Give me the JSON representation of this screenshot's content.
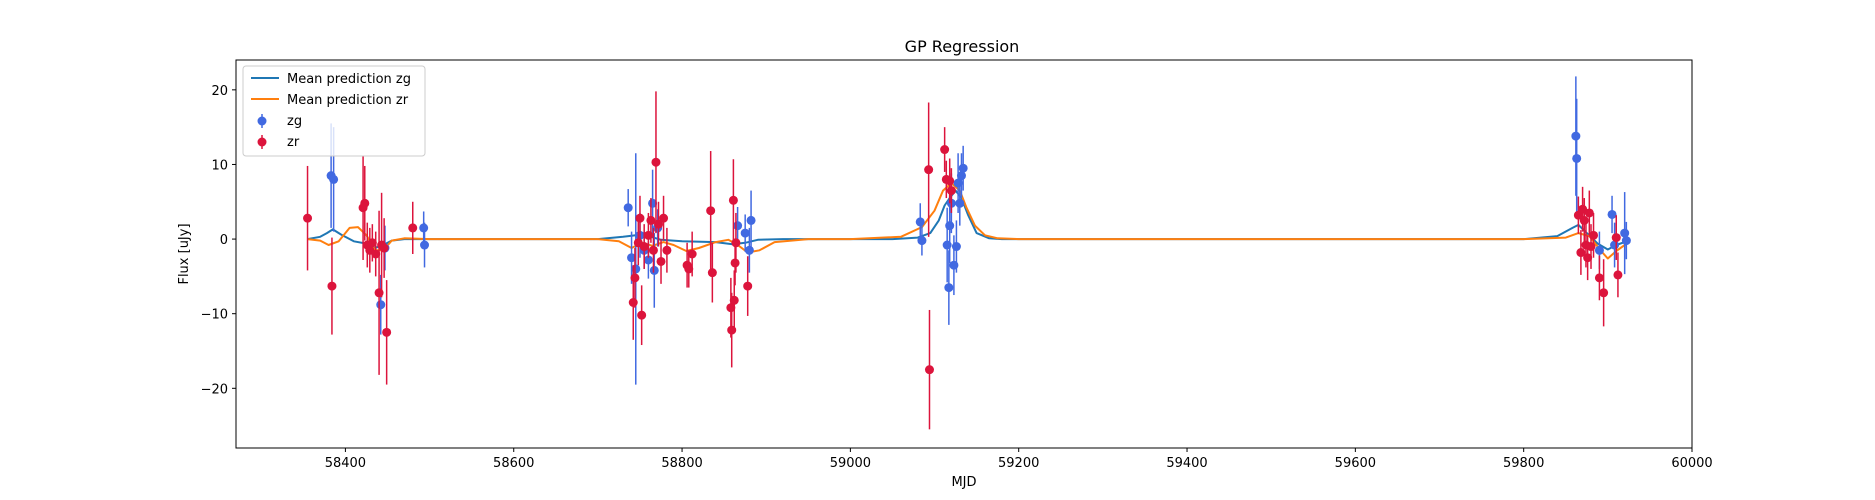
{
  "chart_data": {
    "type": "scatter",
    "title": "GP Regression",
    "xlabel": "MJD",
    "ylabel": "Flux [uJy]",
    "xlim": [
      58270,
      60000
    ],
    "ylim": [
      -28,
      24
    ],
    "xticks": [
      58400,
      58600,
      58800,
      59000,
      59200,
      59400,
      59600,
      59800,
      60000
    ],
    "yticks": [
      -20,
      -10,
      0,
      10,
      20
    ],
    "ytick_labels": [
      "−20",
      "−10",
      "0",
      "10",
      "20"
    ],
    "legend_position": "upper-left",
    "colors": {
      "zg_line": "#1f77b4",
      "zr_line": "#ff7f0e",
      "zg_points": "#4169e1",
      "zr_points": "#dc143c"
    },
    "series": [
      {
        "name": "Mean prediction zg",
        "kind": "line",
        "color_key": "zg_line",
        "x": [
          58355,
          58370,
          58378,
          58385,
          58395,
          58410,
          58425,
          58435,
          58445,
          58455,
          58470,
          58500,
          58600,
          58700,
          58730,
          58745,
          58760,
          58775,
          58800,
          58840,
          58860,
          58875,
          58890,
          58920,
          59000,
          59050,
          59080,
          59095,
          59105,
          59112,
          59118,
          59125,
          59132,
          59140,
          59150,
          59165,
          59180,
          59250,
          59400,
          59600,
          59800,
          59840,
          59858,
          59865,
          59875,
          59888,
          59900,
          59910,
          59925
        ],
        "y": [
          0,
          0.3,
          0.8,
          1.3,
          0.6,
          -0.3,
          -0.6,
          -1.2,
          -0.8,
          -0.2,
          0,
          0,
          0,
          0,
          0.3,
          0.5,
          0.4,
          -0.1,
          -0.3,
          -0.4,
          -0.7,
          -0.5,
          -0.1,
          0,
          0,
          0,
          0.2,
          0.8,
          2.5,
          4.5,
          5.5,
          6.5,
          5.5,
          3.2,
          0.8,
          0.1,
          0,
          0,
          0,
          0,
          0,
          0.4,
          1.5,
          1.9,
          0.8,
          -0.6,
          -1.4,
          -0.8,
          -0.2
        ]
      },
      {
        "name": "Mean prediction zr",
        "kind": "line",
        "color_key": "zr_line",
        "x": [
          58355,
          58370,
          58380,
          58392,
          58405,
          58415,
          58425,
          58435,
          58445,
          58455,
          58470,
          58500,
          58600,
          58700,
          58725,
          58740,
          58752,
          58765,
          58778,
          58790,
          58805,
          58820,
          58840,
          58855,
          58865,
          58878,
          58892,
          58910,
          58950,
          59000,
          59060,
          59085,
          59100,
          59110,
          59120,
          59130,
          59138,
          59148,
          59160,
          59175,
          59200,
          59400,
          59600,
          59800,
          59850,
          59865,
          59878,
          59892,
          59900,
          59910,
          59925
        ],
        "y": [
          0,
          -0.2,
          -0.8,
          -0.3,
          1.5,
          1.6,
          0.5,
          -1.5,
          -1.5,
          -0.2,
          0.1,
          0,
          0,
          0,
          -0.3,
          -1.2,
          -0.5,
          -0.9,
          -0.4,
          -0.8,
          -1.6,
          -1.2,
          -0.4,
          -0.1,
          -0.7,
          -1.8,
          -1.5,
          -0.4,
          0,
          0,
          0.3,
          1.6,
          3.8,
          6.5,
          7.5,
          6.5,
          4.2,
          1.8,
          0.5,
          0.1,
          0,
          0,
          0,
          0,
          0.2,
          0.8,
          0.4,
          -1.6,
          -2.6,
          -1.6,
          -0.4
        ]
      },
      {
        "name": "zg",
        "kind": "errorbar",
        "color_key": "zg_points",
        "points": [
          {
            "x": 58383,
            "y": 8.5,
            "err": 7
          },
          {
            "x": 58386,
            "y": 8.0,
            "err": 7
          },
          {
            "x": 58442,
            "y": -8.8,
            "err": 4
          },
          {
            "x": 58447,
            "y": -1.2,
            "err": 3
          },
          {
            "x": 58493,
            "y": 1.5,
            "err": 2.2
          },
          {
            "x": 58494,
            "y": -0.8,
            "err": 3
          },
          {
            "x": 58736,
            "y": 4.2,
            "err": 2.5
          },
          {
            "x": 58740,
            "y": -2.5,
            "err": 3.5
          },
          {
            "x": 58745,
            "y": -4.0,
            "err": 15.5
          },
          {
            "x": 58750,
            "y": 0.5,
            "err": 3
          },
          {
            "x": 58755,
            "y": -1.5,
            "err": 2.5
          },
          {
            "x": 58760,
            "y": -2.8,
            "err": 2.5
          },
          {
            "x": 58765,
            "y": 4.8,
            "err": 4.5
          },
          {
            "x": 58767,
            "y": -4.2,
            "err": 5
          },
          {
            "x": 58771,
            "y": 1.5,
            "err": 2.5
          },
          {
            "x": 58866,
            "y": 1.8,
            "err": 2.5
          },
          {
            "x": 58875,
            "y": 0.8,
            "err": 2.5
          },
          {
            "x": 58880,
            "y": -1.5,
            "err": 3
          },
          {
            "x": 58882,
            "y": 2.5,
            "err": 4
          },
          {
            "x": 59083,
            "y": 2.3,
            "err": 2.5
          },
          {
            "x": 59085,
            "y": -0.2,
            "err": 2
          },
          {
            "x": 59115,
            "y": -0.8,
            "err": 5
          },
          {
            "x": 59117,
            "y": -6.5,
            "err": 5
          },
          {
            "x": 59118,
            "y": 1.8,
            "err": 5
          },
          {
            "x": 59120,
            "y": 4.8,
            "err": 4
          },
          {
            "x": 59123,
            "y": -3.5,
            "err": 4
          },
          {
            "x": 59126,
            "y": -1.0,
            "err": 3.5
          },
          {
            "x": 59128,
            "y": 7.5,
            "err": 4
          },
          {
            "x": 59130,
            "y": 4.8,
            "err": 3
          },
          {
            "x": 59132,
            "y": 8.5,
            "err": 3
          },
          {
            "x": 59134,
            "y": 9.5,
            "err": 3
          },
          {
            "x": 59862,
            "y": 13.8,
            "err": 8
          },
          {
            "x": 59863,
            "y": 10.8,
            "err": 8
          },
          {
            "x": 59890,
            "y": -1.5,
            "err": 2.5
          },
          {
            "x": 59905,
            "y": 3.3,
            "err": 2.5
          },
          {
            "x": 59908,
            "y": -0.8,
            "err": 3
          },
          {
            "x": 59920,
            "y": 0.8,
            "err": 5.5
          },
          {
            "x": 59922,
            "y": -0.2,
            "err": 2.5
          }
        ]
      },
      {
        "name": "zr",
        "kind": "errorbar",
        "color_key": "zr_points",
        "points": [
          {
            "x": 58355,
            "y": 2.8,
            "err": 7
          },
          {
            "x": 58384,
            "y": -6.3,
            "err": 6.5
          },
          {
            "x": 58421,
            "y": 4.2,
            "err": 7
          },
          {
            "x": 58423,
            "y": 4.8,
            "err": 5
          },
          {
            "x": 58426,
            "y": -0.8,
            "err": 3
          },
          {
            "x": 58429,
            "y": -1.5,
            "err": 3
          },
          {
            "x": 58432,
            "y": -0.5,
            "err": 2.5
          },
          {
            "x": 58436,
            "y": -2.0,
            "err": 3
          },
          {
            "x": 58440,
            "y": -7.2,
            "err": 11
          },
          {
            "x": 58443,
            "y": -0.8,
            "err": 7
          },
          {
            "x": 58446,
            "y": -1.2,
            "err": 4
          },
          {
            "x": 58449,
            "y": -12.5,
            "err": 7
          },
          {
            "x": 58480,
            "y": 1.5,
            "err": 3.5
          },
          {
            "x": 58742,
            "y": -8.5,
            "err": 5
          },
          {
            "x": 58744,
            "y": -5.2,
            "err": 4
          },
          {
            "x": 58748,
            "y": -0.5,
            "err": 3
          },
          {
            "x": 58750,
            "y": 2.8,
            "err": 3
          },
          {
            "x": 58752,
            "y": -10.2,
            "err": 4
          },
          {
            "x": 58755,
            "y": -1.0,
            "err": 3
          },
          {
            "x": 58760,
            "y": 0.5,
            "err": 3
          },
          {
            "x": 58763,
            "y": 2.5,
            "err": 3
          },
          {
            "x": 58766,
            "y": -1.5,
            "err": 3
          },
          {
            "x": 58769,
            "y": 10.3,
            "err": 9.5
          },
          {
            "x": 58772,
            "y": 2.0,
            "err": 3
          },
          {
            "x": 58775,
            "y": -3.0,
            "err": 3
          },
          {
            "x": 58778,
            "y": 2.8,
            "err": 3
          },
          {
            "x": 58782,
            "y": -1.5,
            "err": 3
          },
          {
            "x": 58806,
            "y": -3.5,
            "err": 3
          },
          {
            "x": 58808,
            "y": -4.0,
            "err": 2.5
          },
          {
            "x": 58812,
            "y": -2.0,
            "err": 3
          },
          {
            "x": 58834,
            "y": 3.8,
            "err": 8
          },
          {
            "x": 58836,
            "y": -4.5,
            "err": 4
          },
          {
            "x": 58858,
            "y": -9.2,
            "err": 4
          },
          {
            "x": 58859,
            "y": -12.2,
            "err": 5
          },
          {
            "x": 58861,
            "y": 5.2,
            "err": 5.5
          },
          {
            "x": 58862,
            "y": -8.2,
            "err": 4
          },
          {
            "x": 58863,
            "y": -3.2,
            "err": 3
          },
          {
            "x": 58864,
            "y": -0.5,
            "err": 4
          },
          {
            "x": 58878,
            "y": -6.3,
            "err": 4
          },
          {
            "x": 59093,
            "y": 9.3,
            "err": 9
          },
          {
            "x": 59094,
            "y": -17.5,
            "err": 8
          },
          {
            "x": 59112,
            "y": 12.0,
            "err": 3
          },
          {
            "x": 59114,
            "y": 8.0,
            "err": 2.5
          },
          {
            "x": 59118,
            "y": 7.8,
            "err": 3
          },
          {
            "x": 59120,
            "y": 6.5,
            "err": 3
          },
          {
            "x": 59865,
            "y": 3.2,
            "err": 2.5
          },
          {
            "x": 59868,
            "y": -1.8,
            "err": 3
          },
          {
            "x": 59870,
            "y": 4.0,
            "err": 3
          },
          {
            "x": 59872,
            "y": 2.5,
            "err": 3
          },
          {
            "x": 59874,
            "y": -0.8,
            "err": 3
          },
          {
            "x": 59876,
            "y": -2.5,
            "err": 3
          },
          {
            "x": 59878,
            "y": 3.5,
            "err": 3
          },
          {
            "x": 59880,
            "y": -1.0,
            "err": 3
          },
          {
            "x": 59883,
            "y": 0.5,
            "err": 3
          },
          {
            "x": 59890,
            "y": -5.2,
            "err": 3
          },
          {
            "x": 59895,
            "y": -7.2,
            "err": 4.5
          },
          {
            "x": 59910,
            "y": 0.2,
            "err": 3
          },
          {
            "x": 59912,
            "y": -4.8,
            "err": 3
          }
        ]
      }
    ]
  }
}
